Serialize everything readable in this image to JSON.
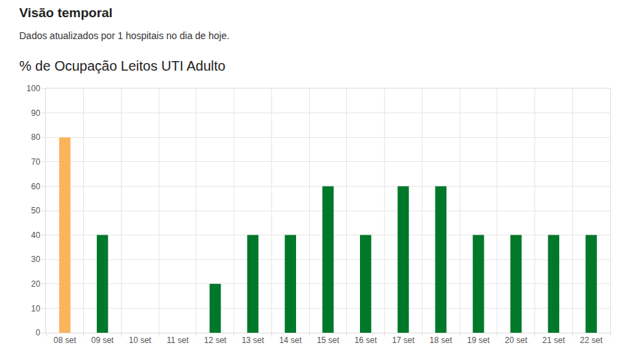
{
  "header": {
    "title": "Visão temporal",
    "subtitle": "Dados atualizados por 1 hospitais no dia de hoje."
  },
  "chart_data": {
    "type": "bar",
    "title": "% de Ocupação Leitos UTI Adulto",
    "categories": [
      "08 set",
      "09 set",
      "10 set",
      "11 set",
      "12 set",
      "13 set",
      "14 set",
      "15 set",
      "16 set",
      "17 set",
      "18 set",
      "19 set",
      "20 set",
      "21 set",
      "22 set"
    ],
    "values": [
      80,
      40,
      0,
      0,
      20,
      40,
      40,
      60,
      40,
      60,
      60,
      40,
      40,
      40,
      40
    ],
    "colors": [
      "#fbb45c",
      "#00782a",
      "#00782a",
      "#00782a",
      "#00782a",
      "#00782a",
      "#00782a",
      "#00782a",
      "#00782a",
      "#00782a",
      "#00782a",
      "#00782a",
      "#00782a",
      "#00782a",
      "#00782a"
    ],
    "ylim": [
      0,
      100
    ],
    "yticks": [
      0,
      10,
      20,
      30,
      40,
      50,
      60,
      70,
      80,
      90,
      100
    ],
    "grid": true
  }
}
